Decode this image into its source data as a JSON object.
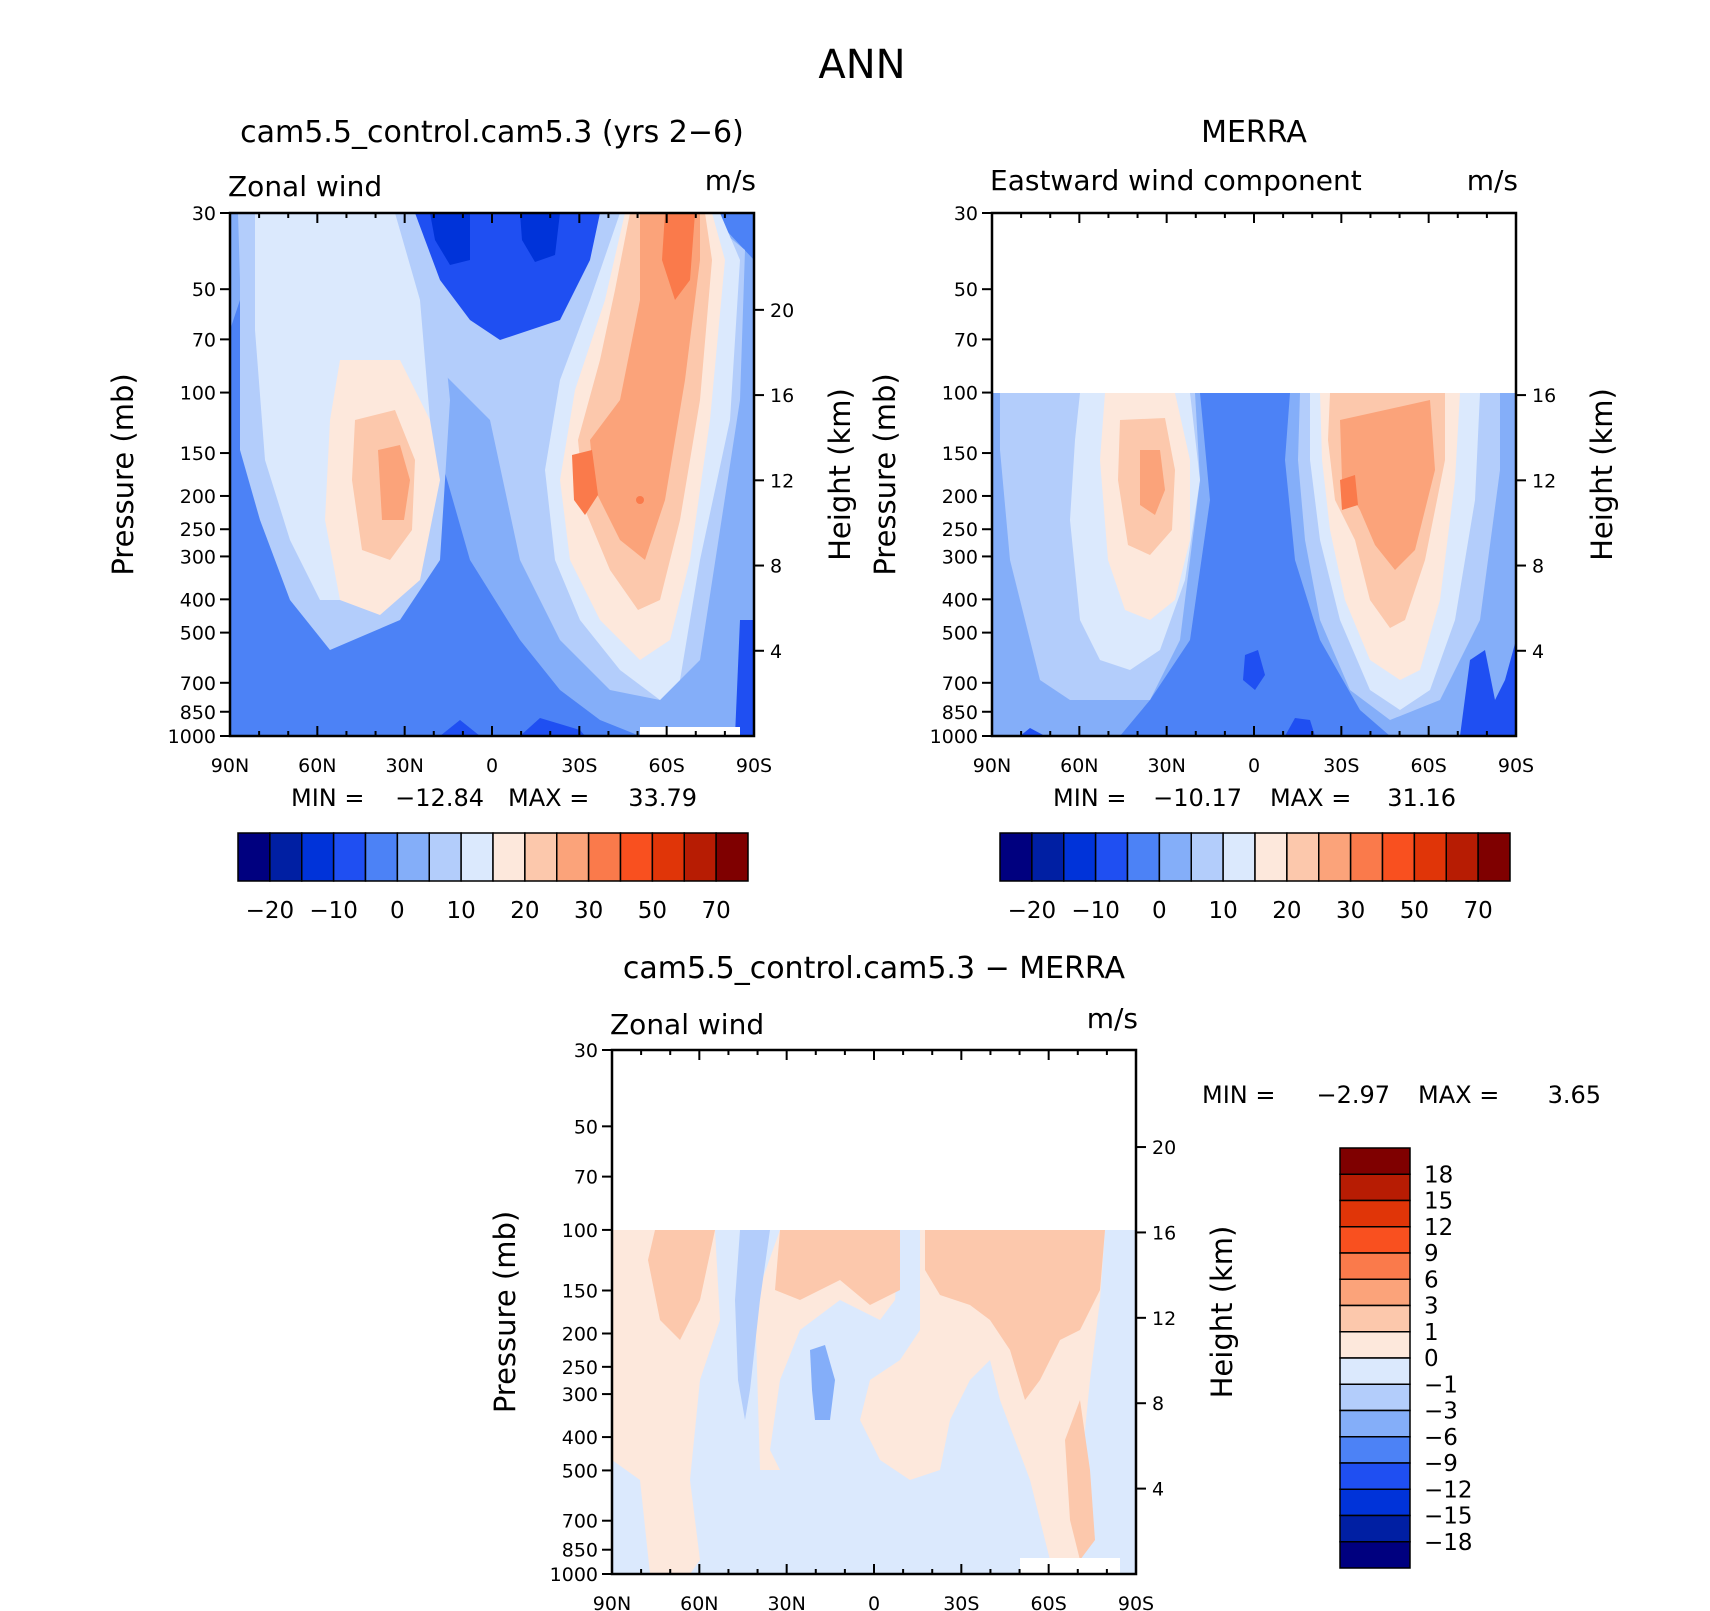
{
  "figure": {
    "title": "ANN"
  },
  "colors": {
    "model_levels": [
      "#00007f",
      "#001fa3",
      "#0033d9",
      "#1f4ff2",
      "#4c82f6",
      "#84aef9",
      "#b3cdfb",
      "#dbe9fd",
      "#fde8dc",
      "#fcc8ac",
      "#fba37a",
      "#fa7a4b",
      "#f9501f",
      "#e03508",
      "#b71c03",
      "#7f0000"
    ],
    "diff_levels": [
      "#00007f",
      "#001fa3",
      "#0033d9",
      "#1f4ff2",
      "#4c82f6",
      "#84aef9",
      "#b3cdfb",
      "#dbe9fd",
      "#fde8dc",
      "#fcc8ac",
      "#fba37a",
      "#fa7a4b",
      "#f9501f",
      "#e03508",
      "#b71c03",
      "#7f0000"
    ]
  },
  "chart_data": [
    {
      "type": "heatmap",
      "title": "cam5.5_control.cam5.3 (yrs 2−6)",
      "left_label": "Zonal wind",
      "right_label": "m/s",
      "ylabel": "Pressure (mb)",
      "y2label": "Height (km)",
      "xticklabels": [
        "90N",
        "60N",
        "30N",
        "0",
        "30S",
        "60S",
        "90S"
      ],
      "x_values": [
        90,
        60,
        30,
        0,
        -30,
        -60,
        -90
      ],
      "yticklabels": [
        "30",
        "50",
        "70",
        "100",
        "150",
        "200",
        "250",
        "300",
        "400",
        "500",
        "700",
        "850",
        "1000"
      ],
      "y2ticklabels": [
        "20",
        "16",
        "12",
        "8",
        "4"
      ],
      "log_pressure_axis": true,
      "ylim": [
        1000,
        30
      ],
      "min_label": "MIN =",
      "min_value": "−12.84",
      "max_label": "MAX =",
      "max_value": "33.79",
      "colorbar_ticks": [
        "−20",
        "−10",
        "0",
        "10",
        "20",
        "30",
        "50",
        "70"
      ],
      "features": [
        {
          "lat": -30,
          "pressure": 200,
          "value": 30
        },
        {
          "lat": 30,
          "pressure": 200,
          "value": 25
        },
        {
          "lat": 10,
          "pressure": 30,
          "value": -12
        }
      ]
    },
    {
      "type": "heatmap",
      "title": "MERRA",
      "left_label": "Eastward wind component",
      "right_label": "m/s",
      "ylabel": "Pressure (mb)",
      "y2label": "Height (km)",
      "xticklabels": [
        "90N",
        "60N",
        "30N",
        "0",
        "30S",
        "60S",
        "90S"
      ],
      "x_values": [
        90,
        60,
        30,
        0,
        -30,
        -60,
        -90
      ],
      "yticklabels": [
        "30",
        "50",
        "70",
        "100",
        "150",
        "200",
        "250",
        "300",
        "400",
        "500",
        "700",
        "850",
        "1000"
      ],
      "y2ticklabels": [
        "16",
        "12",
        "8",
        "4"
      ],
      "log_pressure_axis": true,
      "ylim": [
        1000,
        30
      ],
      "data_top_pressure": 100,
      "min_label": "MIN =",
      "min_value": "−10.17",
      "max_label": "MAX =",
      "max_value": "31.16",
      "colorbar_ticks": [
        "−20",
        "−10",
        "0",
        "10",
        "20",
        "30",
        "50",
        "70"
      ],
      "features": [
        {
          "lat": -30,
          "pressure": 200,
          "value": 30
        },
        {
          "lat": 35,
          "pressure": 200,
          "value": 25
        }
      ]
    },
    {
      "type": "heatmap",
      "title": "cam5.5_control.cam5.3 − MERRA",
      "left_label": "Zonal wind",
      "right_label": "m/s",
      "ylabel": "Pressure (mb)",
      "y2label": "Height (km)",
      "xticklabels": [
        "90N",
        "60N",
        "30N",
        "0",
        "30S",
        "60S",
        "90S"
      ],
      "x_values": [
        90,
        60,
        30,
        0,
        -30,
        -60,
        -90
      ],
      "yticklabels": [
        "30",
        "50",
        "70",
        "100",
        "150",
        "200",
        "250",
        "300",
        "400",
        "500",
        "700",
        "850",
        "1000"
      ],
      "y2ticklabels": [
        "20",
        "16",
        "12",
        "8",
        "4"
      ],
      "log_pressure_axis": true,
      "ylim": [
        1000,
        30
      ],
      "data_top_pressure": 100,
      "min_label": "MIN =",
      "min_value": "−2.97",
      "max_label": "MAX =",
      "max_value": "3.65",
      "colorbar_ticks": [
        "18",
        "15",
        "12",
        "9",
        "6",
        "3",
        "1",
        "0",
        "−1",
        "−3",
        "−6",
        "−9",
        "−12",
        "−15",
        "−18"
      ]
    }
  ]
}
